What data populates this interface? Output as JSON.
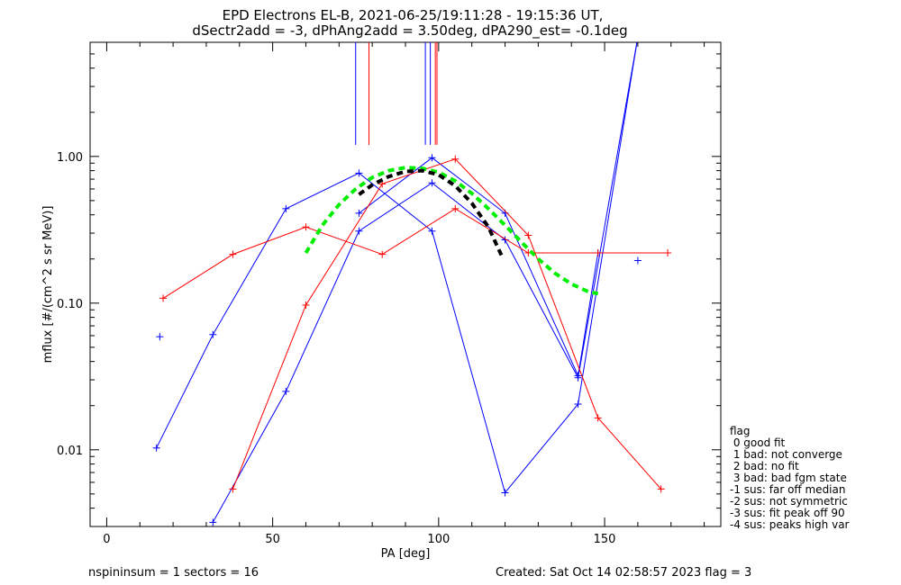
{
  "chart_data": {
    "type": "line",
    "title_line1": "EPD Electrons EL-B, 2021-06-25/19:11:28 - 19:15:36 UT,",
    "title_line2": "dSectr2add = -3, dPhAng2add = 3.50deg, dPA290_est=  -0.1deg",
    "xlabel": "PA [deg]",
    "ylabel": "mflux [#/(cm^2 s sr MeV)]",
    "xlim": [
      -5,
      185
    ],
    "ylim": [
      0.003,
      6.0
    ],
    "yscale": "log",
    "x_ticks": [
      0,
      50,
      100,
      150
    ],
    "x_tick_labels": [
      "0",
      "50",
      "100",
      "150"
    ],
    "y_ticks": [
      0.01,
      0.1,
      1.0
    ],
    "y_tick_labels": [
      "0.01",
      "0.10",
      "1.00"
    ],
    "footer_left": "nspininsum =  1  sectors = 16",
    "footer_right": "Created: Sat Oct 14 02:58:57 2023   flag = 3",
    "legend_title": "flag",
    "legend_items": [
      " 0 good fit",
      " 1 bad: not converge",
      " 2 bad: no fit",
      " 3 bad: bad fgm state",
      "-1 sus: far off median",
      "-2 sus: not symmetric",
      "-3 sus: fit peak off 90",
      "-4 sus: peaks high var"
    ],
    "colors": {
      "blue": "#0000ff",
      "red": "#ff0000",
      "green": "#00ee00",
      "black": "#000000"
    },
    "series": [
      {
        "color": "#0000ff",
        "marker": "plus",
        "points": [
          [
            15,
            0.0103
          ],
          [
            32,
            0.061
          ],
          [
            54,
            0.44
          ],
          [
            76,
            0.77
          ],
          [
            98,
            0.31
          ],
          [
            120,
            0.0051
          ],
          [
            142,
            0.0205
          ],
          [
            160,
            6.5
          ]
        ]
      },
      {
        "color": "#0000ff",
        "marker": "plus",
        "points": [
          [
            32,
            0.0032
          ],
          [
            54,
            0.025
          ],
          [
            76,
            0.31
          ],
          [
            98,
            0.66
          ],
          [
            120,
            0.27
          ],
          [
            142,
            0.031
          ],
          [
            160,
            6.5
          ]
        ]
      },
      {
        "color": "#0000ff",
        "marker": "plus",
        "points": [
          [
            76,
            0.41
          ],
          [
            98,
            0.98
          ],
          [
            120,
            0.41
          ],
          [
            142,
            0.032
          ],
          [
            148,
            0.22
          ]
        ]
      },
      {
        "color": "#ff0000",
        "marker": "plus",
        "points": [
          [
            17,
            0.108
          ],
          [
            38,
            0.215
          ],
          [
            60,
            0.33
          ],
          [
            83,
            0.215
          ],
          [
            105,
            0.44
          ],
          [
            127,
            0.22
          ],
          [
            148,
            0.22
          ],
          [
            169,
            0.22
          ]
        ]
      },
      {
        "color": "#ff0000",
        "marker": "plus",
        "points": [
          [
            38,
            0.0054
          ],
          [
            60,
            0.097
          ],
          [
            83,
            0.65
          ],
          [
            105,
            0.96
          ],
          [
            127,
            0.29
          ],
          [
            148,
            0.0165
          ],
          [
            167,
            0.0054
          ]
        ]
      },
      {
        "color": "#0000ff",
        "marker": "plus",
        "points": [
          [
            16,
            0.059
          ]
        ]
      },
      {
        "color": "#0000ff",
        "marker": "plus",
        "points": [
          [
            160,
            0.195
          ]
        ]
      }
    ],
    "fit_curves": [
      {
        "color": "#00ee00",
        "style": "dashed",
        "width": 4,
        "points": [
          [
            60,
            0.22
          ],
          [
            65,
            0.34
          ],
          [
            70,
            0.47
          ],
          [
            75,
            0.6
          ],
          [
            80,
            0.72
          ],
          [
            85,
            0.8
          ],
          [
            90,
            0.84
          ],
          [
            95,
            0.83
          ],
          [
            100,
            0.78
          ],
          [
            105,
            0.68
          ],
          [
            110,
            0.56
          ],
          [
            115,
            0.44
          ],
          [
            120,
            0.34
          ],
          [
            125,
            0.26
          ],
          [
            130,
            0.2
          ],
          [
            135,
            0.16
          ],
          [
            140,
            0.135
          ],
          [
            145,
            0.12
          ],
          [
            148,
            0.116
          ]
        ]
      },
      {
        "color": "#000000",
        "style": "dashed",
        "width": 4,
        "points": [
          [
            76,
            0.55
          ],
          [
            80,
            0.64
          ],
          [
            85,
            0.73
          ],
          [
            90,
            0.79
          ],
          [
            95,
            0.8
          ],
          [
            100,
            0.75
          ],
          [
            105,
            0.63
          ],
          [
            110,
            0.48
          ],
          [
            115,
            0.33
          ],
          [
            119,
            0.21
          ]
        ]
      }
    ],
    "vertical_markers": [
      {
        "color": "#0000ff",
        "x": 75
      },
      {
        "color": "#ff0000",
        "x": 79
      },
      {
        "color": "#0000ff",
        "x": 96
      },
      {
        "color": "#0000ff",
        "x": 97.5
      },
      {
        "color": "#ff0000",
        "x": 99
      },
      {
        "color": "#ff0000",
        "x": 99.5
      }
    ],
    "vertical_marker_range": [
      1.2,
      6.0
    ]
  }
}
